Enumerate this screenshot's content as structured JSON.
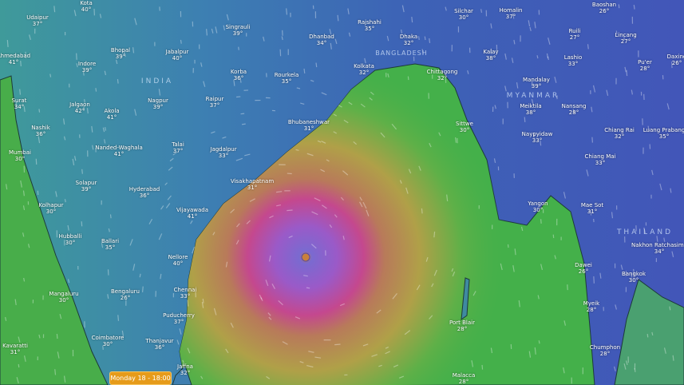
{
  "timeline": {
    "label": "Monday 18 - 18:00"
  },
  "colors": {
    "land_low": "#3d63b5",
    "land_mid": "#3f8fa8",
    "sea": "#3fae4a",
    "cyclone_outer": "#c89a45",
    "cyclone_wall": "#c0488e",
    "cyclone_core": "#8a55c8",
    "timeline_badge": "#e69b1a"
  },
  "countries": [
    "INDIA",
    "BANGLADESH",
    "MYANMAR",
    "THAILAND"
  ],
  "cities": [
    {
      "name": "Kota",
      "temp": "40°"
    },
    {
      "name": "Udaipur",
      "temp": "37°"
    },
    {
      "name": "Ahmedabad",
      "temp": "41°"
    },
    {
      "name": "Indore",
      "temp": "39°"
    },
    {
      "name": "Bhopal",
      "temp": "39°"
    },
    {
      "name": "Jabalpur",
      "temp": "40°"
    },
    {
      "name": "Singrauli",
      "temp": "39°"
    },
    {
      "name": "Dhanbad",
      "temp": "34°"
    },
    {
      "name": "Korba",
      "temp": "36°"
    },
    {
      "name": "Rourkela",
      "temp": "35°"
    },
    {
      "name": "Surat",
      "temp": "34°"
    },
    {
      "name": "Jalgaon",
      "temp": "42°"
    },
    {
      "name": "Akola",
      "temp": "41°"
    },
    {
      "name": "Nagpur",
      "temp": "39°"
    },
    {
      "name": "Raipur",
      "temp": "37°"
    },
    {
      "name": "Bhubaneshwar",
      "temp": "31°"
    },
    {
      "name": "Nashik",
      "temp": "36°"
    },
    {
      "name": "Mumbai",
      "temp": "30°"
    },
    {
      "name": "Nanded-Waghala",
      "temp": "41°"
    },
    {
      "name": "Talai",
      "temp": "37°"
    },
    {
      "name": "Jagdalpur",
      "temp": "33°"
    },
    {
      "name": "Visakhapatnam",
      "temp": "31°"
    },
    {
      "name": "Solapur",
      "temp": "39°"
    },
    {
      "name": "Hyderabad",
      "temp": "36°"
    },
    {
      "name": "Kolhapur",
      "temp": "30°"
    },
    {
      "name": "Vijayawada",
      "temp": "41°"
    },
    {
      "name": "Hubballi",
      "temp": "30°"
    },
    {
      "name": "Ballari",
      "temp": "35°"
    },
    {
      "name": "Nellore",
      "temp": "40°"
    },
    {
      "name": "Mangaluru",
      "temp": "30°"
    },
    {
      "name": "Bengaluru",
      "temp": "26°"
    },
    {
      "name": "Chennai",
      "temp": "33°"
    },
    {
      "name": "Puducherry",
      "temp": "37°"
    },
    {
      "name": "Coimbatore",
      "temp": "30°"
    },
    {
      "name": "Thanjavur",
      "temp": "36°"
    },
    {
      "name": "Kavaratti",
      "temp": "31°"
    },
    {
      "name": "Jaffna",
      "temp": "32°"
    },
    {
      "name": "Rajshahi",
      "temp": "35°"
    },
    {
      "name": "Dhaka",
      "temp": "32°"
    },
    {
      "name": "Silchar",
      "temp": "30°"
    },
    {
      "name": "Homalin",
      "temp": "37°"
    },
    {
      "name": "Kolkata",
      "temp": "32°"
    },
    {
      "name": "Chittagong",
      "temp": "32°"
    },
    {
      "name": "Kalay",
      "temp": "38°"
    },
    {
      "name": "Mandalay",
      "temp": "39°"
    },
    {
      "name": "Meiktila",
      "temp": "38°"
    },
    {
      "name": "Nansang",
      "temp": "28°"
    },
    {
      "name": "Sittwe",
      "temp": "30°"
    },
    {
      "name": "Naypyidaw",
      "temp": "33°"
    },
    {
      "name": "Ruili",
      "temp": "27°"
    },
    {
      "name": "Baoshan",
      "temp": "26°"
    },
    {
      "name": "Lincang",
      "temp": "27°"
    },
    {
      "name": "Lashio",
      "temp": "33°"
    },
    {
      "name": "Pu'er",
      "temp": "28°"
    },
    {
      "name": "Daxing",
      "temp": "26°"
    },
    {
      "name": "Chiang Rai",
      "temp": "32°"
    },
    {
      "name": "Luang Prabang",
      "temp": "35°"
    },
    {
      "name": "Chiang Mai",
      "temp": "33°"
    },
    {
      "name": "Yangon",
      "temp": "30°"
    },
    {
      "name": "Mae Sot",
      "temp": "31°"
    },
    {
      "name": "Nakhon Ratchasima",
      "temp": "34°"
    },
    {
      "name": "Dawei",
      "temp": "26°"
    },
    {
      "name": "Bangkok",
      "temp": "30°"
    },
    {
      "name": "Myeik",
      "temp": "28°"
    },
    {
      "name": "Port Blair",
      "temp": "28°"
    },
    {
      "name": "Chumphon",
      "temp": "28°"
    },
    {
      "name": "Malacca",
      "temp": "28°"
    }
  ]
}
